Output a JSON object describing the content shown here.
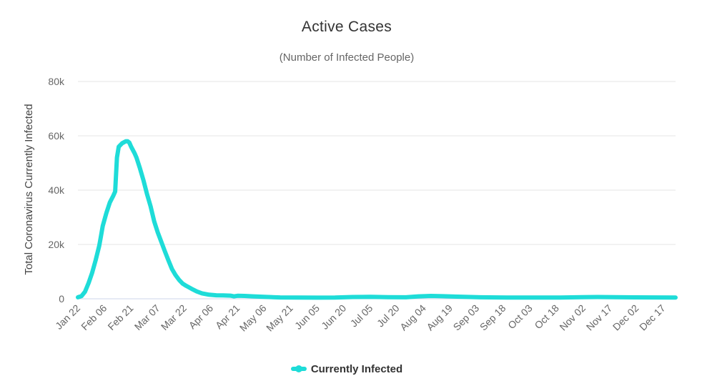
{
  "chart_data": {
    "type": "line",
    "title": "Active Cases",
    "subtitle": "(Number of Infected People)",
    "ylabel": "Total Coronavirus Currently Infected",
    "xlabel": "",
    "ylim": [
      0,
      80000
    ],
    "y_ticks": [
      0,
      20000,
      40000,
      60000,
      80000
    ],
    "y_tick_labels": [
      "0",
      "20k",
      "40k",
      "60k",
      "80k"
    ],
    "x_start": "Jan 22",
    "x_end": "Dec 24",
    "x_tick_labels": [
      "Jan 22",
      "Feb 06",
      "Feb 21",
      "Mar 07",
      "Mar 22",
      "Apr 06",
      "Apr 21",
      "May 06",
      "May 21",
      "Jun 05",
      "Jun 20",
      "Jul 05",
      "Jul 20",
      "Aug 04",
      "Aug 19",
      "Sep 03",
      "Sep 18",
      "Oct 03",
      "Oct 18",
      "Nov 02",
      "Nov 17",
      "Dec 02",
      "Dec 17"
    ],
    "grid": true,
    "legend_position": "bottom",
    "series": [
      {
        "name": "Currently Infected",
        "color": "#1edcd8",
        "points": [
          {
            "x": "Jan 22",
            "y": 550
          },
          {
            "x": "Jan 24",
            "y": 1000
          },
          {
            "x": "Jan 26",
            "y": 2600
          },
          {
            "x": "Jan 28",
            "y": 5800
          },
          {
            "x": "Jan 30",
            "y": 9500
          },
          {
            "x": "Feb 01",
            "y": 14200
          },
          {
            "x": "Feb 03",
            "y": 19500
          },
          {
            "x": "Feb 04",
            "y": 23000
          },
          {
            "x": "Feb 05",
            "y": 26800
          },
          {
            "x": "Feb 07",
            "y": 31500
          },
          {
            "x": "Feb 09",
            "y": 35500
          },
          {
            "x": "Feb 11",
            "y": 38000
          },
          {
            "x": "Feb 12",
            "y": 39500
          },
          {
            "x": "Feb 13",
            "y": 52000
          },
          {
            "x": "Feb 14",
            "y": 56000
          },
          {
            "x": "Feb 16",
            "y": 57300
          },
          {
            "x": "Feb 18",
            "y": 58000
          },
          {
            "x": "Feb 19",
            "y": 58000
          },
          {
            "x": "Feb 20",
            "y": 57500
          },
          {
            "x": "Feb 21",
            "y": 56000
          },
          {
            "x": "Feb 23",
            "y": 53500
          },
          {
            "x": "Feb 24",
            "y": 52000
          },
          {
            "x": "Feb 26",
            "y": 48000
          },
          {
            "x": "Feb 28",
            "y": 43500
          },
          {
            "x": "Mar 01",
            "y": 38500
          },
          {
            "x": "Mar 03",
            "y": 34000
          },
          {
            "x": "Mar 05",
            "y": 28500
          },
          {
            "x": "Mar 07",
            "y": 24500
          },
          {
            "x": "Mar 09",
            "y": 21000
          },
          {
            "x": "Mar 11",
            "y": 17500
          },
          {
            "x": "Mar 13",
            "y": 14200
          },
          {
            "x": "Mar 15",
            "y": 11000
          },
          {
            "x": "Mar 17",
            "y": 8800
          },
          {
            "x": "Mar 19",
            "y": 7000
          },
          {
            "x": "Mar 21",
            "y": 5600
          },
          {
            "x": "Mar 23",
            "y": 4800
          },
          {
            "x": "Mar 26",
            "y": 3700
          },
          {
            "x": "Mar 29",
            "y": 2700
          },
          {
            "x": "Apr 01",
            "y": 2000
          },
          {
            "x": "Apr 05",
            "y": 1500
          },
          {
            "x": "Apr 09",
            "y": 1300
          },
          {
            "x": "Apr 13",
            "y": 1250
          },
          {
            "x": "Apr 17",
            "y": 1150
          },
          {
            "x": "Apr 19",
            "y": 900
          },
          {
            "x": "Apr 21",
            "y": 1100
          },
          {
            "x": "Apr 25",
            "y": 1050
          },
          {
            "x": "Apr 30",
            "y": 900
          },
          {
            "x": "May 06",
            "y": 700
          },
          {
            "x": "May 15",
            "y": 500
          },
          {
            "x": "May 25",
            "y": 450
          },
          {
            "x": "Jun 05",
            "y": 420
          },
          {
            "x": "Jun 15",
            "y": 450
          },
          {
            "x": "Jun 25",
            "y": 650
          },
          {
            "x": "Jul 05",
            "y": 700
          },
          {
            "x": "Jul 15",
            "y": 600
          },
          {
            "x": "Jul 25",
            "y": 550
          },
          {
            "x": "Aug 01",
            "y": 900
          },
          {
            "x": "Aug 08",
            "y": 1050
          },
          {
            "x": "Aug 15",
            "y": 950
          },
          {
            "x": "Aug 25",
            "y": 750
          },
          {
            "x": "Sep 05",
            "y": 550
          },
          {
            "x": "Sep 20",
            "y": 480
          },
          {
            "x": "Oct 05",
            "y": 450
          },
          {
            "x": "Oct 20",
            "y": 480
          },
          {
            "x": "Nov 01",
            "y": 580
          },
          {
            "x": "Nov 10",
            "y": 650
          },
          {
            "x": "Nov 20",
            "y": 600
          },
          {
            "x": "Dec 01",
            "y": 520
          },
          {
            "x": "Dec 12",
            "y": 500
          },
          {
            "x": "Dec 24",
            "y": 480
          }
        ]
      }
    ]
  }
}
